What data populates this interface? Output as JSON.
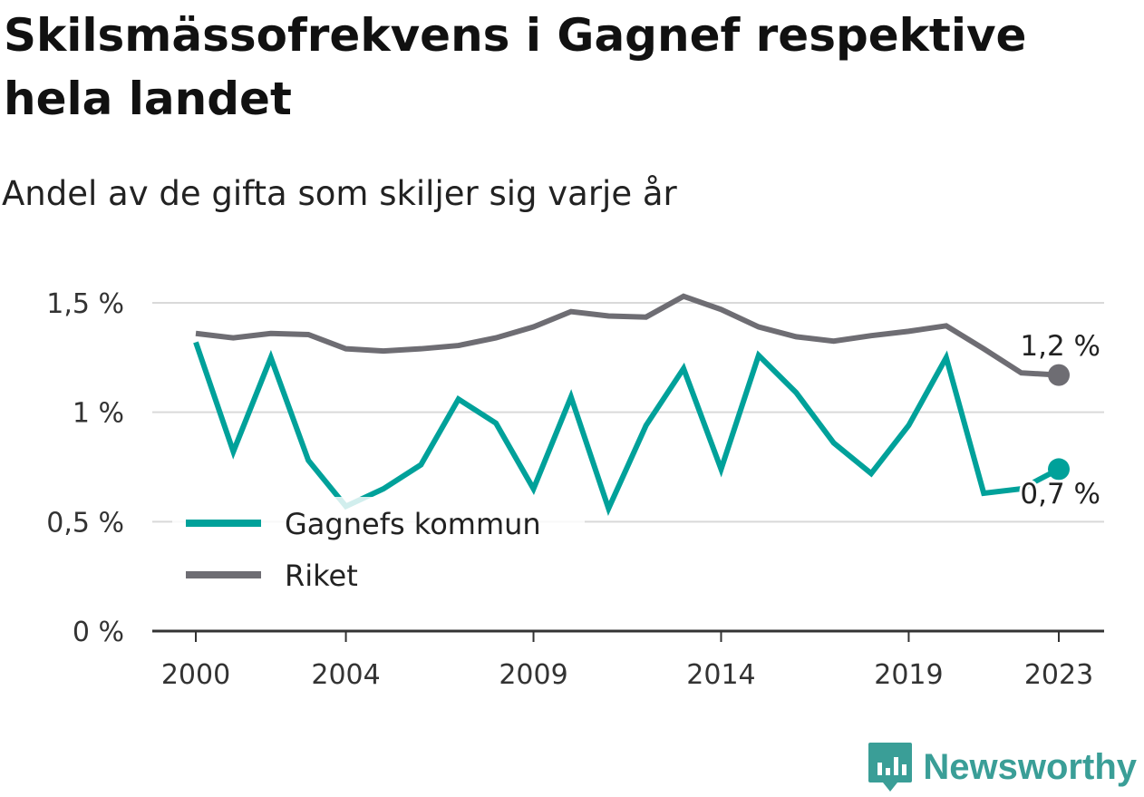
{
  "title": "Skilsmässofrekvens i Gagnef respektive hela landet",
  "subtitle": "Andel av de gifta som skiljer sig varje år",
  "brand": "Newsworthy",
  "colors": {
    "gagnef": "#00a19a",
    "riket": "#6e6d73",
    "grid": "#d9d9d9",
    "axis": "#333333"
  },
  "chart_data": {
    "type": "line",
    "x": [
      2000,
      2001,
      2002,
      2003,
      2004,
      2005,
      2006,
      2007,
      2008,
      2009,
      2010,
      2011,
      2012,
      2013,
      2014,
      2015,
      2016,
      2017,
      2018,
      2019,
      2020,
      2021,
      2022,
      2023
    ],
    "x_tick_values": [
      2000,
      2004,
      2009,
      2014,
      2019,
      2023
    ],
    "x_tick_labels": [
      "2000",
      "2004",
      "2009",
      "2014",
      "2019",
      "2023"
    ],
    "y_tick_values": [
      0,
      0.5,
      1,
      1.5
    ],
    "y_tick_labels": [
      "0 %",
      "0,5 %",
      "1 %",
      "1,5 %"
    ],
    "ylim": [
      0,
      1.5
    ],
    "grid": true,
    "legend_position": "lower-left",
    "series": [
      {
        "name": "Gagnefs kommun",
        "key": "gagnef",
        "values": [
          1.32,
          0.82,
          1.25,
          0.78,
          0.57,
          0.65,
          0.76,
          1.06,
          0.95,
          0.65,
          1.07,
          0.56,
          0.94,
          1.2,
          0.74,
          1.26,
          1.09,
          0.86,
          0.72,
          0.94,
          1.25,
          0.63,
          0.65,
          0.74
        ],
        "end_label": "0,7 %"
      },
      {
        "name": "Riket",
        "key": "riket",
        "values": [
          1.36,
          1.34,
          1.36,
          1.355,
          1.29,
          1.28,
          1.29,
          1.305,
          1.34,
          1.39,
          1.46,
          1.44,
          1.435,
          1.53,
          1.47,
          1.39,
          1.345,
          1.325,
          1.35,
          1.37,
          1.395,
          1.29,
          1.18,
          1.17
        ],
        "end_label": "1,2 %"
      }
    ]
  }
}
